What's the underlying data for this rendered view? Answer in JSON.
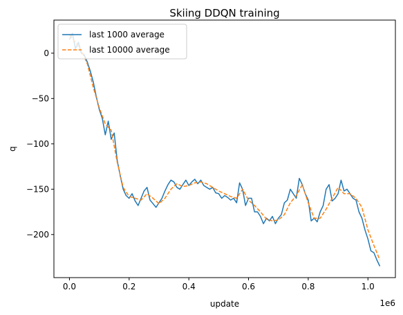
{
  "chart_data": {
    "type": "line",
    "title": "Skiing DDQN training",
    "xlabel": "update",
    "ylabel": "q",
    "x_multiplier_label": "1e6",
    "xlim": [
      -0.052,
      1.092
    ],
    "ylim": [
      -247.5,
      36.5
    ],
    "xticks": [
      0.0,
      0.2,
      0.4,
      0.6,
      0.8,
      1.0
    ],
    "xtick_labels": [
      "0.0",
      "0.2",
      "0.4",
      "0.6",
      "0.8",
      "1.0"
    ],
    "yticks": [
      0,
      -50,
      -100,
      -150,
      -200
    ],
    "ytick_labels": [
      "0",
      "−50",
      "−100",
      "−150",
      "−200"
    ],
    "legend": {
      "placement": "top-left"
    },
    "grid": false,
    "series": [
      {
        "name": "last 1000 average",
        "color": "#1f77b4",
        "style": "solid",
        "x": [
          0.0,
          0.01,
          0.02,
          0.03,
          0.04,
          0.05,
          0.06,
          0.07,
          0.08,
          0.09,
          0.1,
          0.11,
          0.12,
          0.13,
          0.14,
          0.15,
          0.16,
          0.17,
          0.18,
          0.19,
          0.2,
          0.21,
          0.22,
          0.23,
          0.24,
          0.25,
          0.26,
          0.27,
          0.28,
          0.29,
          0.3,
          0.31,
          0.32,
          0.33,
          0.34,
          0.35,
          0.36,
          0.37,
          0.38,
          0.39,
          0.4,
          0.41,
          0.42,
          0.43,
          0.44,
          0.45,
          0.46,
          0.47,
          0.48,
          0.49,
          0.5,
          0.51,
          0.52,
          0.53,
          0.54,
          0.55,
          0.56,
          0.57,
          0.58,
          0.59,
          0.6,
          0.61,
          0.62,
          0.63,
          0.64,
          0.65,
          0.66,
          0.67,
          0.68,
          0.69,
          0.7,
          0.71,
          0.72,
          0.73,
          0.74,
          0.75,
          0.76,
          0.77,
          0.78,
          0.79,
          0.8,
          0.81,
          0.82,
          0.83,
          0.84,
          0.85,
          0.86,
          0.87,
          0.88,
          0.89,
          0.9,
          0.91,
          0.92,
          0.93,
          0.94,
          0.95,
          0.96,
          0.97,
          0.98,
          0.99,
          1.0,
          1.01,
          1.02,
          1.03,
          1.04
        ],
        "y": [
          15,
          22,
          5,
          12,
          0,
          -2,
          -10,
          -20,
          -32,
          -48,
          -62,
          -72,
          -90,
          -75,
          -95,
          -88,
          -118,
          -135,
          -150,
          -157,
          -160,
          -155,
          -163,
          -168,
          -160,
          -152,
          -148,
          -162,
          -166,
          -170,
          -165,
          -160,
          -152,
          -145,
          -140,
          -142,
          -148,
          -150,
          -145,
          -140,
          -146,
          -142,
          -139,
          -144,
          -140,
          -146,
          -148,
          -150,
          -148,
          -154,
          -155,
          -160,
          -157,
          -159,
          -162,
          -160,
          -165,
          -143,
          -150,
          -168,
          -160,
          -160,
          -175,
          -175,
          -180,
          -188,
          -182,
          -185,
          -180,
          -188,
          -182,
          -178,
          -165,
          -162,
          -150,
          -155,
          -160,
          -138,
          -145,
          -155,
          -162,
          -185,
          -182,
          -186,
          -175,
          -168,
          -150,
          -145,
          -163,
          -160,
          -155,
          -140,
          -152,
          -150,
          -155,
          -160,
          -162,
          -175,
          -182,
          -195,
          -205,
          -218,
          -220,
          -228,
          -235
        ]
      },
      {
        "name": "last 10000 average",
        "color": "#ff7f0e",
        "style": "dashed",
        "x": [
          0.0,
          0.02,
          0.04,
          0.06,
          0.08,
          0.1,
          0.12,
          0.14,
          0.16,
          0.18,
          0.2,
          0.22,
          0.24,
          0.26,
          0.28,
          0.3,
          0.32,
          0.34,
          0.36,
          0.38,
          0.4,
          0.42,
          0.44,
          0.46,
          0.48,
          0.5,
          0.52,
          0.54,
          0.56,
          0.58,
          0.6,
          0.62,
          0.64,
          0.66,
          0.68,
          0.7,
          0.72,
          0.74,
          0.76,
          0.78,
          0.8,
          0.82,
          0.84,
          0.86,
          0.88,
          0.9,
          0.92,
          0.94,
          0.96,
          0.98,
          1.0,
          1.02,
          1.04
        ],
        "y": [
          20,
          12,
          3,
          -12,
          -38,
          -60,
          -78,
          -85,
          -120,
          -148,
          -158,
          -160,
          -162,
          -155,
          -160,
          -166,
          -160,
          -150,
          -144,
          -147,
          -146,
          -143,
          -142,
          -144,
          -148,
          -152,
          -155,
          -158,
          -160,
          -150,
          -162,
          -168,
          -175,
          -183,
          -185,
          -184,
          -178,
          -165,
          -157,
          -145,
          -165,
          -182,
          -182,
          -172,
          -160,
          -148,
          -155,
          -155,
          -160,
          -170,
          -195,
          -212,
          -228
        ]
      }
    ]
  }
}
